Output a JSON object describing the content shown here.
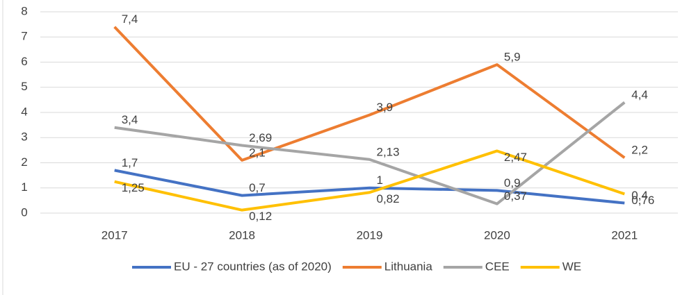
{
  "chart_data": {
    "type": "line",
    "categories": [
      "2017",
      "2018",
      "2019",
      "2020",
      "2021"
    ],
    "series": [
      {
        "name": "EU - 27 countries (as of 2020)",
        "color": "#4472c4",
        "values": [
          1.7,
          0.7,
          1,
          0.9,
          0.4
        ],
        "value_labels": [
          "1,7",
          "0,7",
          "1",
          "0,9",
          "0,4"
        ]
      },
      {
        "name": "Lithuania",
        "color": "#ed7d31",
        "values": [
          7.4,
          2.1,
          3.9,
          5.9,
          2.2
        ],
        "value_labels": [
          "7,4",
          "2,1",
          "3,9",
          "5,9",
          "2,2"
        ]
      },
      {
        "name": "CEE",
        "color": "#a5a5a5",
        "values": [
          3.4,
          2.69,
          2.13,
          0.37,
          4.4
        ],
        "value_labels": [
          "3,4",
          "2,69",
          "2,13",
          "0,37",
          "4,4"
        ]
      },
      {
        "name": "WE",
        "color": "#ffc000",
        "values": [
          1.25,
          0.12,
          0.82,
          2.47,
          0.76
        ],
        "value_labels": [
          "1,25",
          "0,12",
          "0,82",
          "2,47",
          "0,76"
        ]
      }
    ],
    "ylim": [
      0,
      8
    ],
    "yticks": [
      0,
      1,
      2,
      3,
      4,
      5,
      6,
      7,
      8
    ],
    "grid": true,
    "legend": "bottom"
  }
}
